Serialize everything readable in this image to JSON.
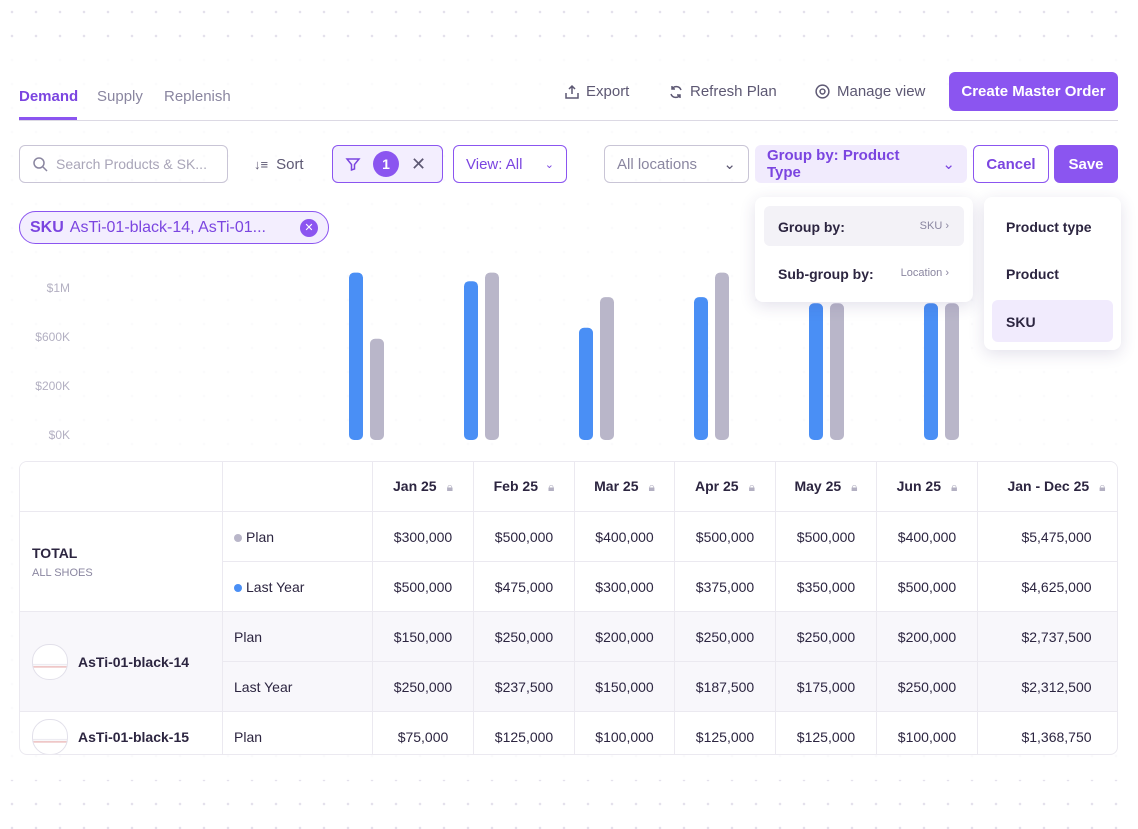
{
  "tabs": [
    "Demand",
    "Supply",
    "Replenish"
  ],
  "toolbar": {
    "export": "Export",
    "refresh": "Refresh Plan",
    "manage_view": "Manage view",
    "create": "Create Master Order"
  },
  "filters": {
    "search_placeholder": "Search Products & SK...",
    "sort": "Sort",
    "filter_count": 1,
    "view": "View: All",
    "locations": "All locations",
    "group_by": "Group by: Product Type",
    "cancel": "Cancel",
    "save": "Save"
  },
  "chip": {
    "label": "SKU",
    "value": "AsTi-01-black-14, AsTi-01..."
  },
  "menu": {
    "rows": [
      {
        "label": "Group by:",
        "value": "SKU"
      },
      {
        "label": "Sub-group by:",
        "value": "Location"
      }
    ],
    "options": [
      "Product type",
      "Product",
      "SKU"
    ]
  },
  "chart": {
    "type": "bar",
    "yticks": [
      {
        "value": 0,
        "label": "$0K"
      },
      {
        "value": 200000,
        "label": "$200K"
      },
      {
        "value": 600000,
        "label": "$600K"
      },
      {
        "value": 1000000,
        "label": "$1M"
      }
    ],
    "series": [
      {
        "color": "#4a8ff5",
        "values": [
          1150000,
          1080000,
          700000,
          950000,
          900000,
          900000
        ]
      },
      {
        "color": "#b9b6c9",
        "values": [
          610000,
          1150000,
          950000,
          1150000,
          900000,
          900000
        ]
      }
    ]
  },
  "table": {
    "columns": [
      "Jan 25",
      "Feb 25",
      "Mar 25",
      "Apr 25",
      "May 25",
      "Jun 25",
      "Jan - Dec 25"
    ],
    "groups": [
      {
        "name": "TOTAL",
        "sub": "ALL SHOES",
        "rows": [
          {
            "metric": "Plan",
            "values": [
              "$300,000",
              "$500,000",
              "$400,000",
              "$500,000",
              "$500,000",
              "$400,000",
              "$5,475,000"
            ]
          },
          {
            "metric": "Last Year",
            "values": [
              "$500,000",
              "$475,000",
              "$300,000",
              "$375,000",
              "$350,000",
              "$500,000",
              "$4,625,000"
            ]
          }
        ]
      },
      {
        "name": "AsTi-01-black-14",
        "rows": [
          {
            "metric": "Plan",
            "values": [
              "$150,000",
              "$250,000",
              "$200,000",
              "$250,000",
              "$250,000",
              "$200,000",
              "$2,737,500"
            ]
          },
          {
            "metric": "Last Year",
            "values": [
              "$250,000",
              "$237,500",
              "$150,000",
              "$187,500",
              "$175,000",
              "$250,000",
              "$2,312,500"
            ]
          }
        ]
      },
      {
        "name": "AsTi-01-black-15",
        "rows": [
          {
            "metric": "Plan",
            "values": [
              "$75,000",
              "$125,000",
              "$100,000",
              "$125,000",
              "$125,000",
              "$100,000",
              "$1,368,750"
            ]
          }
        ]
      }
    ]
  }
}
